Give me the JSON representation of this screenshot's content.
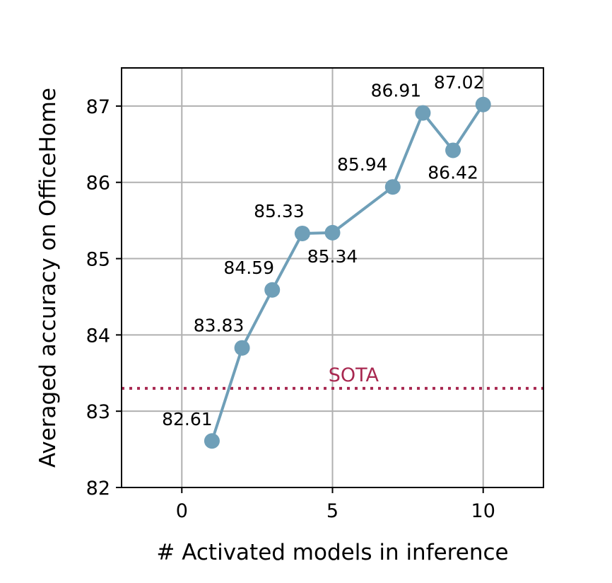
{
  "chart_data": {
    "type": "line",
    "title": "",
    "xlabel": "# Activated models in inference",
    "ylabel": "Averaged accuracy on OfficeHome",
    "xlim": [
      -2,
      12
    ],
    "ylim": [
      82,
      87.5
    ],
    "x_ticks": [
      0,
      5,
      10
    ],
    "y_ticks": [
      82,
      83,
      84,
      85,
      86,
      87
    ],
    "x_tick_labels": [
      "0",
      "5",
      "10"
    ],
    "y_tick_labels": [
      "82",
      "83",
      "84",
      "85",
      "86",
      "87"
    ],
    "grid": true,
    "series": [
      {
        "x": [
          1,
          2,
          3,
          4,
          5,
          7,
          8,
          9,
          10
        ],
        "y": [
          82.61,
          83.83,
          84.59,
          85.33,
          85.34,
          85.94,
          86.91,
          86.42,
          87.02
        ],
        "labels": [
          "82.61",
          "83.83",
          "84.59",
          "85.33",
          "85.34",
          "85.94",
          "86.91",
          "86.42",
          "87.02"
        ],
        "color": "#6f9fb8"
      }
    ],
    "reference_line": {
      "label": "SOTA",
      "y": 83.3,
      "color": "#a82850",
      "style": "dotted"
    }
  }
}
